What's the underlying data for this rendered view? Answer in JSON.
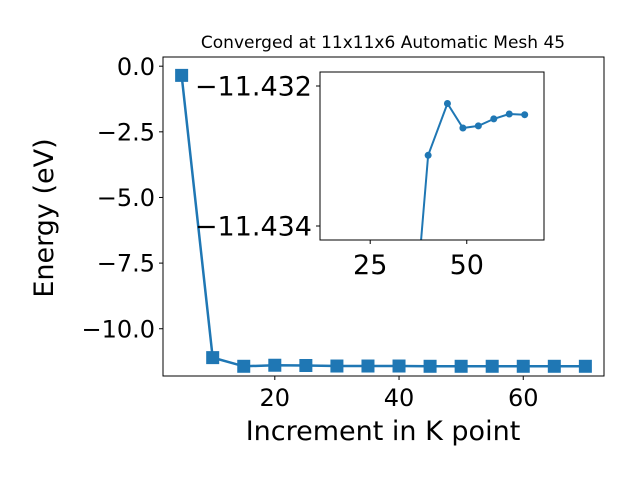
{
  "chart_data": [
    {
      "type": "line",
      "title": "Converged at 11x11x6 Automatic Mesh 45",
      "xlabel": "Increment in K point",
      "ylabel": "Energy (eV)",
      "xlim": [
        2,
        73
      ],
      "ylim": [
        -11.8,
        0.35
      ],
      "x_ticks": [
        20,
        40,
        60
      ],
      "y_ticks": [
        0.0,
        -2.5,
        -5.0,
        -7.5,
        -10.0
      ],
      "y_tick_labels": [
        "0.0",
        "−2.5",
        "−5.0",
        "−7.5",
        "−10.0"
      ],
      "grid": false,
      "marker": "square",
      "color": "#1f77b4",
      "series": [
        {
          "x": [
            5,
            10,
            15,
            20,
            25,
            30,
            35,
            40,
            45,
            50,
            55,
            60,
            65,
            70
          ],
          "y": [
            -0.35,
            -11.1,
            -11.43,
            -11.39,
            -11.4,
            -11.42,
            -11.42,
            -11.42,
            -11.43,
            -11.43,
            -11.43,
            -11.43,
            -11.43,
            -11.43
          ]
        }
      ]
    },
    {
      "type": "line",
      "title": "",
      "inset": true,
      "xlim": [
        12,
        70
      ],
      "ylim": [
        -11.4342,
        -11.4318
      ],
      "x_ticks": [
        25,
        50
      ],
      "y_ticks": [
        -11.434,
        -11.432
      ],
      "y_tick_labels": [
        "−11.434",
        "−11.432"
      ],
      "grid": false,
      "marker": "circle",
      "color": "#1f77b4",
      "series": [
        {
          "x": [
            35,
            40,
            45,
            49,
            53,
            57,
            61,
            65
          ],
          "y": [
            -11.4363,
            -11.43299,
            -11.43225,
            -11.4326,
            -11.43257,
            -11.43247,
            -11.4324,
            -11.43241
          ]
        }
      ]
    }
  ]
}
